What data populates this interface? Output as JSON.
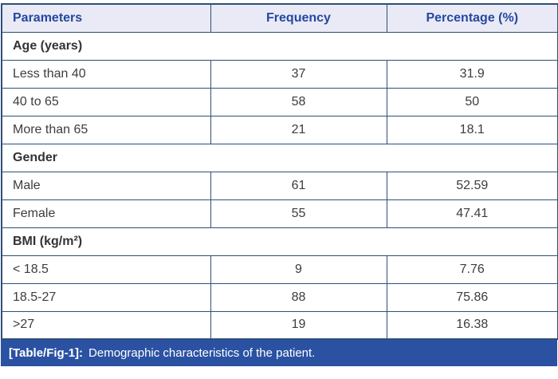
{
  "table": {
    "columns": [
      "Parameters",
      "Frequency",
      "Percentage (%)"
    ],
    "sections": [
      {
        "label": "Age (years)",
        "rows": [
          [
            "Less than 40",
            "37",
            "31.9"
          ],
          [
            "40 to 65",
            "58",
            "50"
          ],
          [
            "More than 65",
            "21",
            "18.1"
          ]
        ]
      },
      {
        "label": "Gender",
        "rows": [
          [
            "Male",
            "61",
            "52.59"
          ],
          [
            "Female",
            "55",
            "47.41"
          ]
        ]
      },
      {
        "label": "BMI (kg/m²)",
        "rows": [
          [
            "< 18.5",
            "9",
            "7.76"
          ],
          [
            "18.5-27",
            "88",
            "75.86"
          ],
          [
            ">27",
            "19",
            "16.38"
          ]
        ]
      }
    ],
    "caption": {
      "tag": "[Table/Fig-1]:",
      "text": "Demographic characteristics of the patient."
    }
  },
  "colors": {
    "border": "#2e4f77",
    "header_bg": "#e9eaf5",
    "header_text": "#2547a0",
    "body_text": "#3d3d3d",
    "caption_bg": "#2b52a2",
    "caption_text": "#ffffff"
  }
}
